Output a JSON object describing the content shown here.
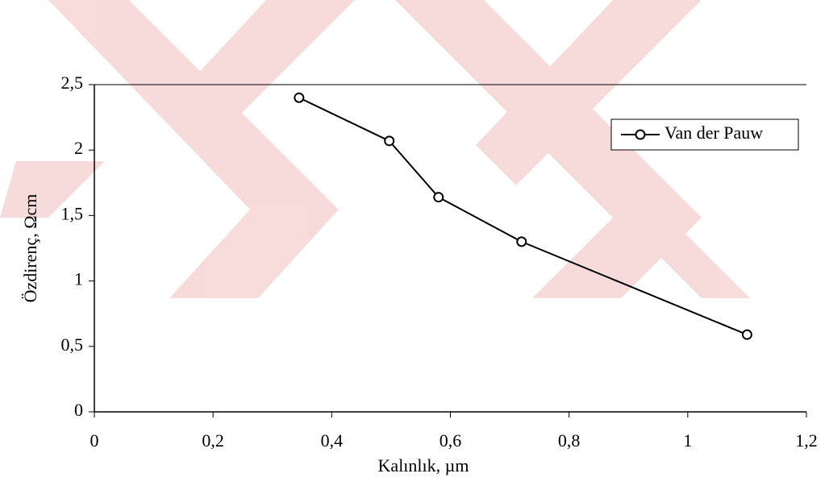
{
  "chart_data": {
    "type": "line",
    "xlabel": "Kalınlık, µm",
    "ylabel": "Özdirenç, Ωcm",
    "x": [
      0.345,
      0.497,
      0.58,
      0.72,
      1.1
    ],
    "series": [
      {
        "name": "Van der Pauw",
        "color": "#000000",
        "values": [
          2.4,
          2.07,
          1.64,
          1.3,
          0.59
        ]
      }
    ],
    "xlim": [
      0,
      1.2
    ],
    "xticks": [
      0,
      {
        "value": 0.2,
        "label": "0,2"
      },
      {
        "value": 0.4,
        "label": "0,4"
      },
      {
        "value": 0.6,
        "label": "0,6"
      },
      {
        "value": 0.8,
        "label": "0,8"
      },
      1,
      {
        "value": 1.2,
        "label": "1,2"
      }
    ],
    "ylim": [
      0,
      2.5
    ],
    "yticks": [
      0,
      {
        "value": 0.5,
        "label": "0,5"
      },
      1,
      {
        "value": 1.5,
        "label": "1,5"
      },
      2,
      {
        "value": 2.5,
        "label": "2,5"
      }
    ],
    "legend": "upper right",
    "grid": false
  }
}
